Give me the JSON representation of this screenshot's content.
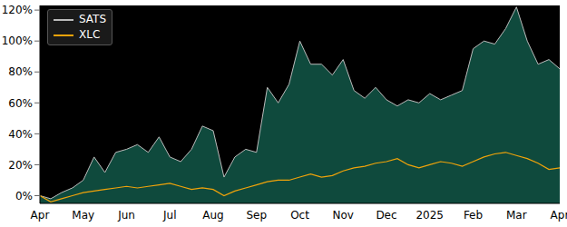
{
  "chart_data": {
    "type": "line",
    "categories": [
      "Apr",
      null,
      null,
      null,
      "May",
      null,
      null,
      null,
      "Jun",
      null,
      null,
      null,
      "Jul",
      null,
      null,
      null,
      "Aug",
      null,
      null,
      null,
      "Sep",
      null,
      null,
      null,
      "Oct",
      null,
      null,
      null,
      "Nov",
      null,
      null,
      null,
      "Dec",
      null,
      null,
      null,
      "2025",
      null,
      null,
      null,
      "Feb",
      null,
      null,
      null,
      "Mar",
      null,
      null,
      null,
      "Apr"
    ],
    "series": [
      {
        "name": "SATS",
        "type": "area",
        "color": "#0f4a3d",
        "values": [
          0,
          -2,
          2,
          5,
          10,
          25,
          15,
          28,
          30,
          33,
          28,
          38,
          25,
          22,
          30,
          45,
          42,
          12,
          25,
          30,
          28,
          70,
          60,
          72,
          100,
          85,
          85,
          78,
          88,
          68,
          63,
          70,
          62,
          58,
          62,
          60,
          66,
          62,
          65,
          68,
          95,
          100,
          98,
          108,
          122,
          100,
          85,
          88,
          82
        ]
      },
      {
        "name": "XLC",
        "type": "line",
        "color": "#f0a30a",
        "values": [
          0,
          -4,
          -2,
          0,
          2,
          3,
          4,
          5,
          6,
          5,
          6,
          7,
          8,
          6,
          4,
          5,
          4,
          0,
          3,
          5,
          7,
          9,
          10,
          10,
          12,
          14,
          12,
          13,
          16,
          18,
          19,
          21,
          22,
          24,
          20,
          18,
          20,
          22,
          21,
          19,
          22,
          25,
          27,
          28,
          26,
          24,
          21,
          17,
          18
        ]
      }
    ],
    "ylim": [
      -5,
      123
    ],
    "yticks": [
      {
        "value": 0,
        "label": "0%"
      },
      {
        "value": 20,
        "label": "20%"
      },
      {
        "value": 40,
        "label": "40%"
      },
      {
        "value": 60,
        "label": "60%"
      },
      {
        "value": 80,
        "label": "80%"
      },
      {
        "value": 100,
        "label": "100%"
      },
      {
        "value": 120,
        "label": "120%"
      }
    ],
    "grid": false,
    "legend": "upper left"
  }
}
